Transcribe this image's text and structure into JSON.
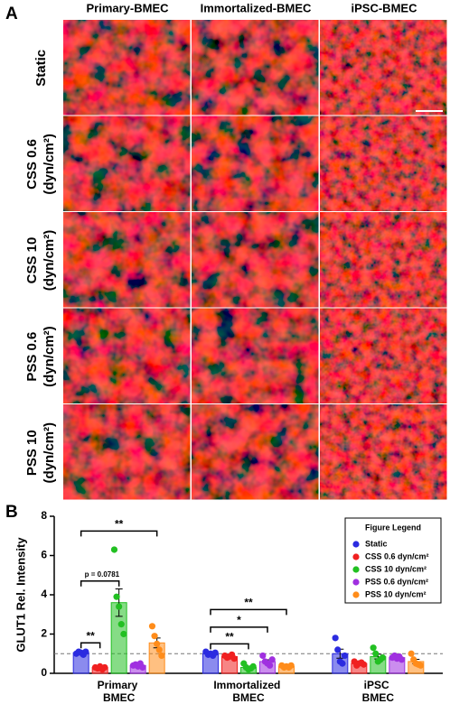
{
  "panel_a": {
    "label": "A",
    "columns": [
      "Primary-BMEC",
      "Immortalized-BMEC",
      "iPSC-BMEC"
    ],
    "rows": [
      [
        "Static"
      ],
      [
        "CSS 0.6",
        "(dyn/cm²)"
      ],
      [
        "CSS 10",
        "(dyn/cm²)"
      ],
      [
        "PSS 0.6",
        "(dyn/cm²)"
      ],
      [
        "PSS 10",
        "(dyn/cm²)"
      ]
    ]
  },
  "chart_data": {
    "type": "bar",
    "label": "B",
    "ylabel": "GLUT1 Rel. Intensity",
    "categories": [
      "Primary BMEC",
      "Immortalized BMEC",
      "iPSC BMEC"
    ],
    "ylim": [
      0,
      8
    ],
    "yticks": [
      0,
      2,
      4,
      6,
      8
    ],
    "reference_line": 1,
    "legend_title": "Figure Legend",
    "legend": "upper right",
    "series": [
      {
        "name": "Static",
        "color": "#2b2be0",
        "values": [
          1.05,
          1.0,
          1.0
        ],
        "errors": [
          0.05,
          0.04,
          0.23
        ],
        "points": [
          [
            1.0,
            1.1,
            1.05,
            0.95,
            1.1
          ],
          [
            1.1,
            0.95,
            1.0,
            0.9,
            1.05
          ],
          [
            1.8,
            1.2,
            0.6,
            0.5,
            0.9
          ]
        ]
      },
      {
        "name": "CSS 0.6 dyn/cm²",
        "color": "#f02020",
        "values": [
          0.3,
          0.85,
          0.5
        ],
        "errors": [
          0.03,
          0.04,
          0.04
        ],
        "points": [
          [
            0.3,
            0.25,
            0.35,
            0.2,
            0.3
          ],
          [
            0.9,
            0.8,
            0.85,
            0.95,
            0.75
          ],
          [
            0.6,
            0.4,
            0.5,
            0.55,
            0.45
          ]
        ]
      },
      {
        "name": "CSS 10 dyn/cm²",
        "color": "#22c022",
        "values": [
          3.6,
          0.3,
          0.85
        ],
        "errors": [
          0.7,
          0.05,
          0.12
        ],
        "points": [
          [
            6.3,
            3.9,
            3.4,
            2.5,
            2.0
          ],
          [
            0.5,
            0.3,
            0.2,
            0.25,
            0.35
          ],
          [
            1.3,
            1.0,
            0.6,
            0.7,
            0.8
          ]
        ]
      },
      {
        "name": "PSS 0.6 dyn/cm²",
        "color": "#a030e0",
        "values": [
          0.4,
          0.6,
          0.8
        ],
        "errors": [
          0.04,
          0.09,
          0.04
        ],
        "points": [
          [
            0.4,
            0.45,
            0.35,
            0.5,
            0.3
          ],
          [
            0.9,
            0.6,
            0.5,
            0.4,
            0.7
          ],
          [
            0.8,
            0.9,
            0.75,
            0.85,
            0.7
          ]
        ]
      },
      {
        "name": "PSS 10 dyn/cm²",
        "color": "#ff8c1a",
        "values": [
          1.55,
          0.35,
          0.6
        ],
        "errors": [
          0.25,
          0.02,
          0.11
        ],
        "points": [
          [
            2.4,
            1.9,
            1.5,
            1.2,
            0.9
          ],
          [
            0.4,
            0.3,
            0.35,
            0.3,
            0.4
          ],
          [
            1.0,
            0.7,
            0.5,
            0.45,
            0.4
          ]
        ]
      }
    ],
    "annotations": [
      {
        "category": 0,
        "from": 0,
        "to": 1,
        "label": "**"
      },
      {
        "category": 0,
        "from": 0,
        "to": 2,
        "label": "p = 0.0781"
      },
      {
        "category": 0,
        "from": 0,
        "to": 4,
        "label": "**"
      },
      {
        "category": 1,
        "from": 0,
        "to": 2,
        "label": "**"
      },
      {
        "category": 1,
        "from": 0,
        "to": 3,
        "label": "*"
      },
      {
        "category": 1,
        "from": 0,
        "to": 4,
        "label": "**"
      }
    ]
  }
}
